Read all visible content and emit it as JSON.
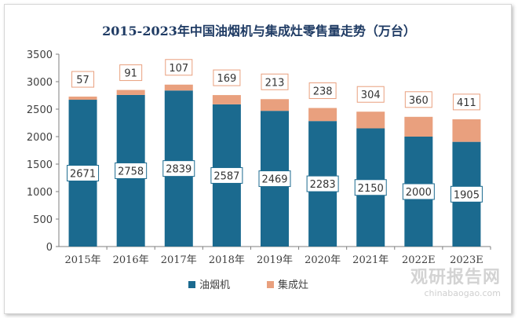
{
  "chart_data": {
    "type": "bar",
    "stacked": true,
    "title": "2015-2023年中国油烟机与集成灶零售量走势（万台）",
    "categories": [
      "2015年",
      "2016年",
      "2017年",
      "2018年",
      "2019年",
      "2020年",
      "2021年",
      "2022E",
      "2023E"
    ],
    "series": [
      {
        "name": "油烟机",
        "color": "#1b6a8f",
        "values": [
          2671,
          2758,
          2839,
          2587,
          2469,
          2283,
          2150,
          2000,
          1905
        ]
      },
      {
        "name": "集成灶",
        "color": "#e9a07e",
        "values": [
          57,
          91,
          107,
          169,
          213,
          238,
          304,
          360,
          411
        ]
      }
    ],
    "ylim": [
      0,
      3500
    ],
    "yticks": [
      0,
      500,
      1000,
      1500,
      2000,
      2500,
      3000,
      3500
    ],
    "grid": false,
    "legend": "bottom"
  },
  "watermark": {
    "brand": "观研报告网",
    "url": "chinabaogao.com"
  }
}
